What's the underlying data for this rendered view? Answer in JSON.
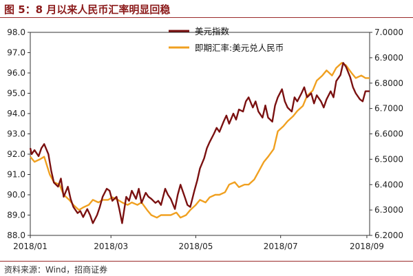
{
  "header": {
    "title": "图 5：8 月以来人民币汇率明显回稳"
  },
  "footer": {
    "source": "资料来源：Wind，招商证券"
  },
  "colors": {
    "title": "#8b1a1a",
    "series_dollar_index": "#7a1010",
    "series_cny": "#f0a020"
  },
  "chart_data": {
    "type": "line",
    "title": "",
    "x_tick_labels": [
      "2018/01",
      "2018/03",
      "2018/05",
      "2018/07",
      "2018/09"
    ],
    "xlim": [
      "2018-01-02",
      "2018-09-03"
    ],
    "y_left": {
      "lim": [
        88.0,
        98.0
      ],
      "ticks": [
        "88.0",
        "89.0",
        "90.0",
        "91.0",
        "92.0",
        "93.0",
        "94.0",
        "95.0",
        "96.0",
        "97.0",
        "98.0"
      ]
    },
    "y_right": {
      "lim": [
        6.2,
        7.0
      ],
      "ticks": [
        "6.2000",
        "6.3000",
        "6.4000",
        "6.5000",
        "6.6000",
        "6.7000",
        "6.8000",
        "6.9000",
        "7.0000"
      ]
    },
    "legend_position": "top-center",
    "grid": false,
    "series": [
      {
        "name": "美元指数",
        "axis": "left",
        "points": [
          [
            "2018-01-02",
            92.3
          ],
          [
            "2018-01-03",
            92.0
          ],
          [
            "2018-01-05",
            92.2
          ],
          [
            "2018-01-08",
            91.9
          ],
          [
            "2018-01-10",
            92.3
          ],
          [
            "2018-01-12",
            92.5
          ],
          [
            "2018-01-15",
            92.0
          ],
          [
            "2018-01-17",
            91.2
          ],
          [
            "2018-01-19",
            90.6
          ],
          [
            "2018-01-22",
            90.4
          ],
          [
            "2018-01-24",
            90.8
          ],
          [
            "2018-01-26",
            89.9
          ],
          [
            "2018-01-29",
            90.4
          ],
          [
            "2018-01-31",
            89.8
          ],
          [
            "2018-02-02",
            89.4
          ],
          [
            "2018-02-05",
            89.1
          ],
          [
            "2018-02-07",
            89.2
          ],
          [
            "2018-02-09",
            88.9
          ],
          [
            "2018-02-12",
            89.3
          ],
          [
            "2018-02-14",
            89.0
          ],
          [
            "2018-02-16",
            88.6
          ],
          [
            "2018-02-19",
            89.0
          ],
          [
            "2018-02-21",
            89.4
          ],
          [
            "2018-02-23",
            89.9
          ],
          [
            "2018-02-26",
            90.3
          ],
          [
            "2018-02-28",
            90.2
          ],
          [
            "2018-03-02",
            89.7
          ],
          [
            "2018-03-05",
            89.9
          ],
          [
            "2018-03-07",
            89.3
          ],
          [
            "2018-03-09",
            88.6
          ],
          [
            "2018-03-12",
            89.9
          ],
          [
            "2018-03-14",
            89.7
          ],
          [
            "2018-03-16",
            90.2
          ],
          [
            "2018-03-19",
            89.8
          ],
          [
            "2018-03-21",
            90.3
          ],
          [
            "2018-03-23",
            89.6
          ],
          [
            "2018-03-26",
            90.1
          ],
          [
            "2018-03-28",
            89.9
          ],
          [
            "2018-03-30",
            89.8
          ],
          [
            "2018-04-02",
            89.6
          ],
          [
            "2018-04-04",
            89.7
          ],
          [
            "2018-04-06",
            89.5
          ],
          [
            "2018-04-09",
            90.3
          ],
          [
            "2018-04-11",
            90.0
          ],
          [
            "2018-04-13",
            89.8
          ],
          [
            "2018-04-16",
            89.3
          ],
          [
            "2018-04-18",
            90.0
          ],
          [
            "2018-04-20",
            90.5
          ],
          [
            "2018-04-23",
            89.9
          ],
          [
            "2018-04-25",
            89.5
          ],
          [
            "2018-04-27",
            89.4
          ],
          [
            "2018-04-30",
            90.2
          ],
          [
            "2018-05-02",
            90.7
          ],
          [
            "2018-05-04",
            91.3
          ],
          [
            "2018-05-07",
            91.8
          ],
          [
            "2018-05-09",
            92.3
          ],
          [
            "2018-05-11",
            92.6
          ],
          [
            "2018-05-14",
            93.0
          ],
          [
            "2018-05-16",
            93.3
          ],
          [
            "2018-05-18",
            93.1
          ],
          [
            "2018-05-21",
            93.6
          ],
          [
            "2018-05-23",
            93.9
          ],
          [
            "2018-05-25",
            93.5
          ],
          [
            "2018-05-28",
            94.0
          ],
          [
            "2018-05-30",
            93.7
          ],
          [
            "2018-06-01",
            94.2
          ],
          [
            "2018-06-04",
            94.1
          ],
          [
            "2018-06-06",
            94.6
          ],
          [
            "2018-06-08",
            94.8
          ],
          [
            "2018-06-11",
            94.3
          ],
          [
            "2018-06-13",
            94.6
          ],
          [
            "2018-06-15",
            94.1
          ],
          [
            "2018-06-18",
            93.8
          ],
          [
            "2018-06-20",
            94.4
          ],
          [
            "2018-06-22",
            93.8
          ],
          [
            "2018-06-25",
            93.6
          ],
          [
            "2018-06-27",
            94.4
          ],
          [
            "2018-06-29",
            94.8
          ],
          [
            "2018-07-02",
            95.2
          ],
          [
            "2018-07-04",
            94.6
          ],
          [
            "2018-07-06",
            94.3
          ],
          [
            "2018-07-09",
            94.1
          ],
          [
            "2018-07-11",
            94.8
          ],
          [
            "2018-07-13",
            94.6
          ],
          [
            "2018-07-16",
            95.0
          ],
          [
            "2018-07-18",
            95.3
          ],
          [
            "2018-07-20",
            94.8
          ],
          [
            "2018-07-23",
            95.0
          ],
          [
            "2018-07-25",
            94.5
          ],
          [
            "2018-07-27",
            94.9
          ],
          [
            "2018-07-30",
            94.6
          ],
          [
            "2018-08-01",
            94.3
          ],
          [
            "2018-08-03",
            94.7
          ],
          [
            "2018-08-06",
            95.1
          ],
          [
            "2018-08-08",
            94.8
          ],
          [
            "2018-08-10",
            95.6
          ],
          [
            "2018-08-13",
            95.9
          ],
          [
            "2018-08-15",
            96.5
          ],
          [
            "2018-08-17",
            96.3
          ],
          [
            "2018-08-20",
            95.8
          ],
          [
            "2018-08-22",
            95.3
          ],
          [
            "2018-08-24",
            95.0
          ],
          [
            "2018-08-27",
            94.7
          ],
          [
            "2018-08-29",
            94.6
          ],
          [
            "2018-08-31",
            95.1
          ],
          [
            "2018-09-03",
            95.1
          ]
        ]
      },
      {
        "name": "即期汇率:美元兑人民币",
        "axis": "right",
        "points": [
          [
            "2018-01-02",
            6.51
          ],
          [
            "2018-01-05",
            6.49
          ],
          [
            "2018-01-09",
            6.5
          ],
          [
            "2018-01-12",
            6.51
          ],
          [
            "2018-01-16",
            6.44
          ],
          [
            "2018-01-19",
            6.41
          ],
          [
            "2018-01-23",
            6.4
          ],
          [
            "2018-01-26",
            6.36
          ],
          [
            "2018-01-30",
            6.34
          ],
          [
            "2018-02-02",
            6.32
          ],
          [
            "2018-02-06",
            6.3
          ],
          [
            "2018-02-09",
            6.31
          ],
          [
            "2018-02-13",
            6.32
          ],
          [
            "2018-02-16",
            6.34
          ],
          [
            "2018-02-20",
            6.33
          ],
          [
            "2018-02-23",
            6.34
          ],
          [
            "2018-02-27",
            6.34
          ],
          [
            "2018-03-02",
            6.35
          ],
          [
            "2018-03-06",
            6.34
          ],
          [
            "2018-03-09",
            6.33
          ],
          [
            "2018-03-13",
            6.32
          ],
          [
            "2018-03-16",
            6.33
          ],
          [
            "2018-03-20",
            6.32
          ],
          [
            "2018-03-23",
            6.33
          ],
          [
            "2018-03-27",
            6.3
          ],
          [
            "2018-03-30",
            6.28
          ],
          [
            "2018-04-03",
            6.27
          ],
          [
            "2018-04-06",
            6.28
          ],
          [
            "2018-04-10",
            6.28
          ],
          [
            "2018-04-13",
            6.28
          ],
          [
            "2018-04-17",
            6.29
          ],
          [
            "2018-04-20",
            6.27
          ],
          [
            "2018-04-24",
            6.28
          ],
          [
            "2018-04-27",
            6.3
          ],
          [
            "2018-05-01",
            6.32
          ],
          [
            "2018-05-04",
            6.34
          ],
          [
            "2018-05-08",
            6.33
          ],
          [
            "2018-05-11",
            6.35
          ],
          [
            "2018-05-15",
            6.36
          ],
          [
            "2018-05-18",
            6.36
          ],
          [
            "2018-05-22",
            6.37
          ],
          [
            "2018-05-25",
            6.4
          ],
          [
            "2018-05-29",
            6.41
          ],
          [
            "2018-06-01",
            6.39
          ],
          [
            "2018-06-05",
            6.4
          ],
          [
            "2018-06-08",
            6.4
          ],
          [
            "2018-06-12",
            6.42
          ],
          [
            "2018-06-15",
            6.45
          ],
          [
            "2018-06-19",
            6.49
          ],
          [
            "2018-06-22",
            6.51
          ],
          [
            "2018-06-26",
            6.54
          ],
          [
            "2018-06-29",
            6.61
          ],
          [
            "2018-07-03",
            6.63
          ],
          [
            "2018-07-06",
            6.65
          ],
          [
            "2018-07-10",
            6.67
          ],
          [
            "2018-07-13",
            6.69
          ],
          [
            "2018-07-17",
            6.71
          ],
          [
            "2018-07-20",
            6.75
          ],
          [
            "2018-07-24",
            6.77
          ],
          [
            "2018-07-27",
            6.81
          ],
          [
            "2018-07-31",
            6.83
          ],
          [
            "2018-08-03",
            6.85
          ],
          [
            "2018-08-07",
            6.83
          ],
          [
            "2018-08-10",
            6.86
          ],
          [
            "2018-08-14",
            6.88
          ],
          [
            "2018-08-17",
            6.87
          ],
          [
            "2018-08-21",
            6.84
          ],
          [
            "2018-08-24",
            6.82
          ],
          [
            "2018-08-28",
            6.83
          ],
          [
            "2018-08-31",
            6.82
          ],
          [
            "2018-09-03",
            6.82
          ]
        ]
      }
    ]
  }
}
